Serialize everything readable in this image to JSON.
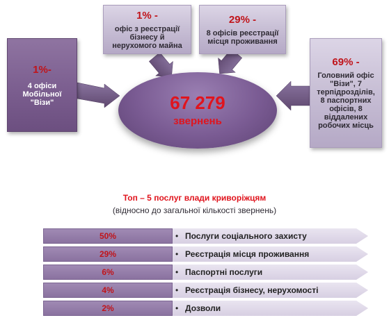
{
  "center": {
    "count": "67 279",
    "label": "звернень"
  },
  "boxes": {
    "mobile": {
      "percent": "1%-",
      "lines": [
        "4 офіси",
        "Мобільної",
        "\"Візи\""
      ]
    },
    "business": {
      "percent": "1% -",
      "lines": [
        "офіс з реєстрації",
        "бізнесу й",
        "нерухомого майна"
      ]
    },
    "residence": {
      "percent": "29% -",
      "lines": [
        "8 офісів реєстрації",
        "місця проживання"
      ]
    },
    "main": {
      "percent": "69% -",
      "lines": [
        "Головний офіс",
        "\"Візи\", 7",
        "терпідрозділів,",
        "8 паспортних",
        "офісів, 8",
        "віддалених",
        "робочих місць"
      ]
    }
  },
  "top_services": {
    "title": "Топ – 5 послуг влади криворіжцям",
    "subtitle": "(відносно до загальної кількості звернень)",
    "items": [
      {
        "percent": "50%",
        "label": "Послуги соціального захисту"
      },
      {
        "percent": "29%",
        "label": "Реєстрація місця проживання"
      },
      {
        "percent": "6%",
        "label": "Паспортні послуги"
      },
      {
        "percent": "4%",
        "label": "Реєстрація бізнесу, нерухомості"
      },
      {
        "percent": "2%",
        "label": "Дозволи"
      }
    ]
  },
  "colors": {
    "accent_red": "#e0141d",
    "dark_purple": "#6c4f80",
    "light_purple": "#d7cfe2"
  }
}
